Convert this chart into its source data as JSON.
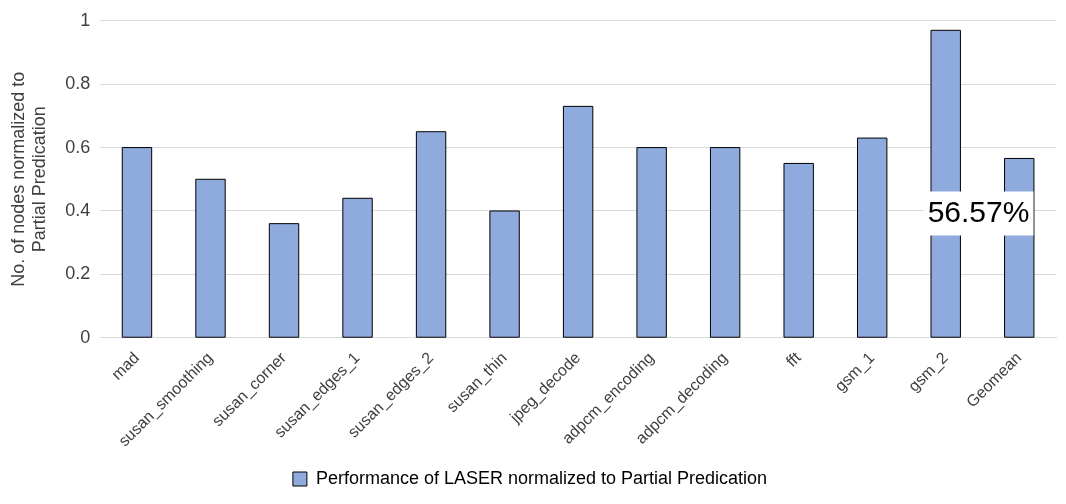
{
  "chart_data": {
    "type": "bar",
    "ylabel": "No. of nodes normalized to Partial Predication",
    "categories": [
      "mad",
      "susan_smoothing",
      "susan_corner",
      "susan_edges_1",
      "susan_edges_2",
      "susan_thin",
      "jpeg_decode",
      "adpcm_encoding",
      "adpcm_decoding",
      "fft",
      "gsm_1",
      "gsm_2",
      "Geomean"
    ],
    "series": [
      {
        "name": "Performance of LASER normalized to Partial Predication",
        "color": "#8faadc",
        "values": [
          0.6,
          0.5,
          0.36,
          0.44,
          0.65,
          0.4,
          0.73,
          0.6,
          0.6,
          0.55,
          0.63,
          0.97,
          0.5657
        ]
      }
    ],
    "ylim": [
      0,
      1
    ],
    "yticks": [
      0,
      0.2,
      0.4,
      0.6,
      0.8,
      1
    ],
    "grid": "y",
    "legend": "bottom",
    "annotations": [
      {
        "text": "56.57%",
        "x": "Geomean",
        "y": 0.5657
      }
    ]
  }
}
